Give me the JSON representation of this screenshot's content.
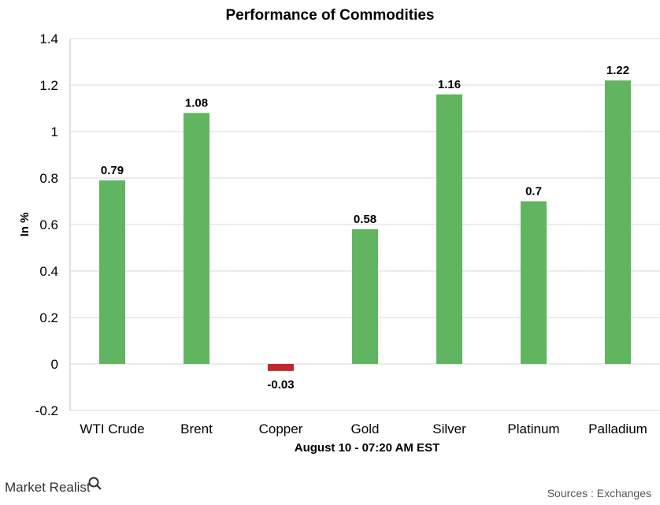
{
  "brand": {
    "name": "Market Realist",
    "logo_icon": "magnifier-icon"
  },
  "source_note": "Sources : Exchanges",
  "chart_data": {
    "type": "bar",
    "title": "Performance of Commodities",
    "xlabel": "August 10 - 07:20 AM EST",
    "ylabel": "In %",
    "ylim": [
      -0.2,
      1.4
    ],
    "yticks": [
      "1.4",
      "1.2",
      "1",
      "0.8",
      "0.6",
      "0.4",
      "0.2",
      "0",
      "-0.2"
    ],
    "grid": true,
    "categories": [
      "WTI Crude",
      "Brent",
      "Copper",
      "Gold",
      "Silver",
      "Platinum",
      "Palladium"
    ],
    "values": [
      0.79,
      1.08,
      -0.03,
      0.58,
      1.16,
      0.7,
      1.22
    ],
    "data_labels": [
      "0.79",
      "1.08",
      "-0.03",
      "0.58",
      "1.16",
      "0.7",
      "1.22"
    ],
    "colors": {
      "positive": "#62b560",
      "negative": "#c0282d",
      "grid": "#d9d9d9",
      "axis": "#bfbfbf"
    }
  }
}
